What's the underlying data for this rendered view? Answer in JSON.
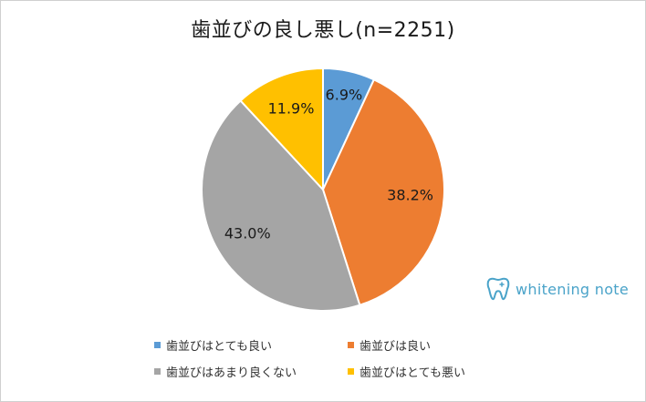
{
  "chart_data": {
    "type": "pie",
    "title": "歯並びの良し悪し(n=2251)",
    "categories": [
      "歯並びはとても良い",
      "歯並びは良い",
      "歯並びはあまり良くない",
      "歯並びはとても悪い"
    ],
    "values": [
      6.9,
      38.2,
      43.0,
      11.9
    ],
    "labels": [
      "6.9%",
      "38.2%",
      "43.0%",
      "11.9%"
    ],
    "colors": [
      "#5b9bd5",
      "#ed7d31",
      "#a5a5a5",
      "#ffc000"
    ],
    "legend": "bottom",
    "start_angle_deg": 0,
    "direction": "clockwise"
  },
  "logo": {
    "text": "whitening note",
    "icon": "tooth-icon",
    "color": "#4aa3c9"
  }
}
